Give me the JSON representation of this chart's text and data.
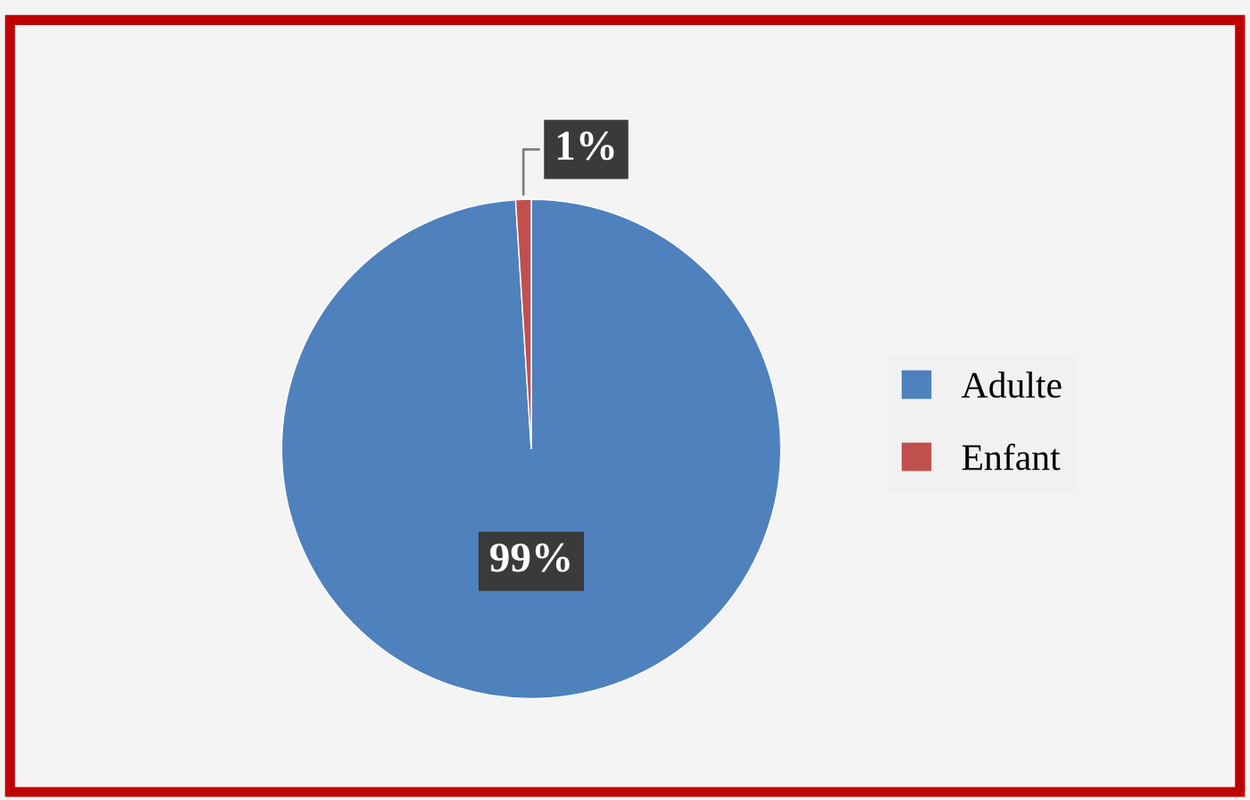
{
  "chart_data": {
    "type": "pie",
    "categories": [
      "Adulte",
      "Enfant"
    ],
    "values": [
      99,
      1
    ],
    "colors": [
      "#4f81bd",
      "#c0504d"
    ],
    "value_labels": [
      "99%",
      "1%"
    ],
    "legend": "right"
  }
}
